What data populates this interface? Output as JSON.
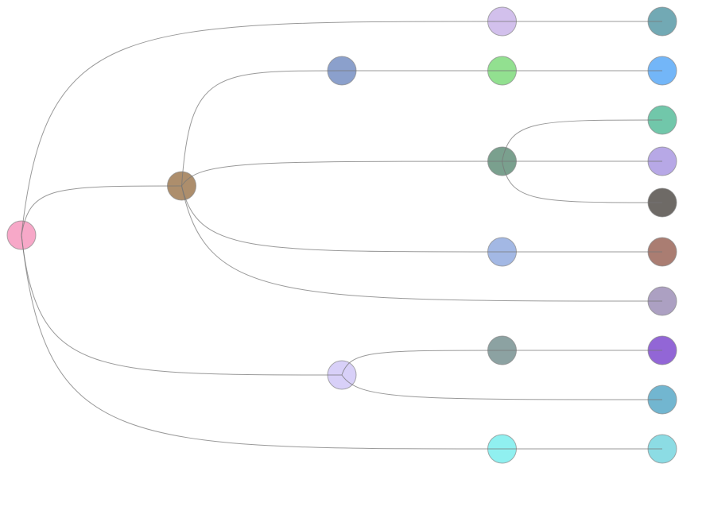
{
  "tree": {
    "color": "#f7a8c8",
    "children": [
      {
        "color": "#d2c0ec",
        "children": [
          {
            "color": "#72a9b4"
          }
        ]
      },
      {
        "color": "#ad8e6c",
        "children": [
          {
            "color": "#8ba0cc",
            "children": [
              {
                "color": "#92e090",
                "children": [
                  {
                    "color": "#73b6f8"
                  }
                ]
              }
            ]
          },
          {
            "color": "#7aa08e",
            "children": [
              {
                "color": "#71c7aa"
              },
              {
                "color": "#b7a8e6"
              },
              {
                "color": "#6e6a66"
              }
            ]
          },
          {
            "color": "#a3b8e4",
            "children": [
              {
                "color": "#aa7d72"
              }
            ]
          },
          {
            "color": "#aca0c2"
          }
        ]
      },
      {
        "color": "#d8d0f8",
        "children": [
          {
            "color": "#8ca2a2",
            "children": [
              {
                "color": "#9266d6"
              }
            ]
          },
          {
            "color": "#72b6d0"
          }
        ]
      },
      {
        "color": "#90f0f0",
        "children": [
          {
            "color": "#8cdce4"
          }
        ]
      }
    ]
  },
  "link_color": "#777777"
}
